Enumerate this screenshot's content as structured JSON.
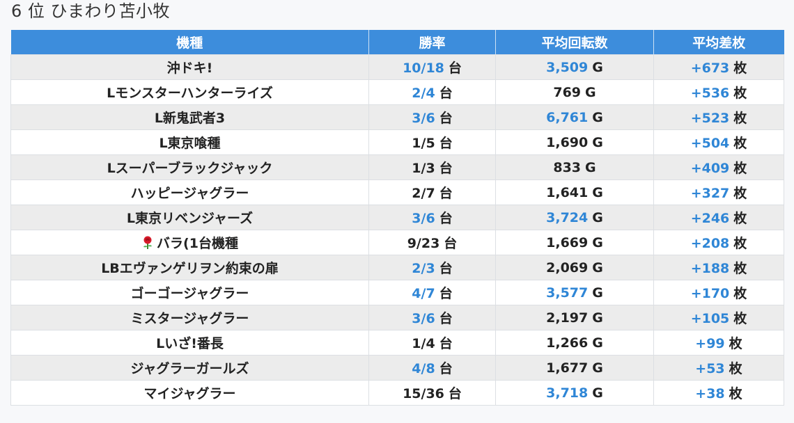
{
  "title": "6 位 ひまわり苫小牧",
  "headers": [
    "機種",
    "勝率",
    "平均回転数",
    "平均差枚"
  ],
  "units": {
    "win": "台",
    "spin": "G",
    "diff": "枚"
  },
  "colors": {
    "header_bg": "#3d8ddc",
    "highlight": "#2f86d6",
    "row_odd": "#ececec",
    "row_even": "#ffffff"
  },
  "rows": [
    {
      "name": "沖ドキ!",
      "win": "10/18",
      "win_hl": true,
      "spin": "3,509",
      "spin_hl": true,
      "diff": "+673",
      "diff_hl": true,
      "icon": ""
    },
    {
      "name": "Lモンスターハンターライズ",
      "win": "2/4",
      "win_hl": true,
      "spin": "769",
      "spin_hl": false,
      "diff": "+536",
      "diff_hl": true,
      "icon": ""
    },
    {
      "name": "L新鬼武者3",
      "win": "3/6",
      "win_hl": true,
      "spin": "6,761",
      "spin_hl": true,
      "diff": "+523",
      "diff_hl": true,
      "icon": ""
    },
    {
      "name": "L東京喰種",
      "win": "1/5",
      "win_hl": false,
      "spin": "1,690",
      "spin_hl": false,
      "diff": "+504",
      "diff_hl": true,
      "icon": ""
    },
    {
      "name": "Lスーパーブラックジャック",
      "win": "1/3",
      "win_hl": false,
      "spin": "833",
      "spin_hl": false,
      "diff": "+409",
      "diff_hl": true,
      "icon": ""
    },
    {
      "name": "ハッピージャグラー",
      "win": "2/7",
      "win_hl": false,
      "spin": "1,641",
      "spin_hl": false,
      "diff": "+327",
      "diff_hl": true,
      "icon": ""
    },
    {
      "name": "L東京リベンジャーズ",
      "win": "3/6",
      "win_hl": true,
      "spin": "3,724",
      "spin_hl": true,
      "diff": "+246",
      "diff_hl": true,
      "icon": ""
    },
    {
      "name": "バラ(1台機種",
      "win": "9/23",
      "win_hl": false,
      "spin": "1,669",
      "spin_hl": false,
      "diff": "+208",
      "diff_hl": true,
      "icon": "rose-icon"
    },
    {
      "name": "LBエヴァンゲリヲン約束の扉",
      "win": "2/3",
      "win_hl": true,
      "spin": "2,069",
      "spin_hl": false,
      "diff": "+188",
      "diff_hl": true,
      "icon": ""
    },
    {
      "name": "ゴーゴージャグラー",
      "win": "4/7",
      "win_hl": true,
      "spin": "3,577",
      "spin_hl": true,
      "diff": "+170",
      "diff_hl": true,
      "icon": ""
    },
    {
      "name": "ミスタージャグラー",
      "win": "3/6",
      "win_hl": true,
      "spin": "2,197",
      "spin_hl": false,
      "diff": "+105",
      "diff_hl": true,
      "icon": ""
    },
    {
      "name": "Lいざ!番長",
      "win": "1/4",
      "win_hl": false,
      "spin": "1,266",
      "spin_hl": false,
      "diff": "+99",
      "diff_hl": true,
      "icon": ""
    },
    {
      "name": "ジャグラーガールズ",
      "win": "4/8",
      "win_hl": true,
      "spin": "1,677",
      "spin_hl": false,
      "diff": "+53",
      "diff_hl": true,
      "icon": ""
    },
    {
      "name": "マイジャグラー",
      "win": "15/36",
      "win_hl": false,
      "spin": "3,718",
      "spin_hl": true,
      "diff": "+38",
      "diff_hl": true,
      "icon": ""
    }
  ]
}
